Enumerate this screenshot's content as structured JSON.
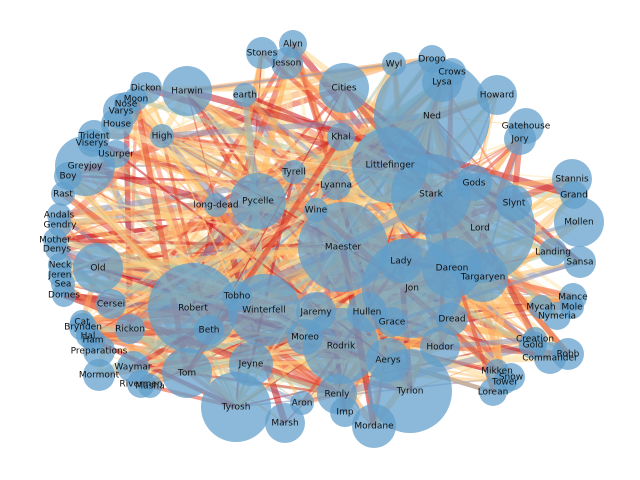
{
  "nodes": [
    "Ned",
    "Stark",
    "Lord",
    "Maester",
    "Littlefinger",
    "Robert",
    "Winterfell",
    "Rodrik",
    "Tyrion",
    "Jon",
    "Dareon",
    "Targaryen",
    "Lady",
    "Cities",
    "Harwin",
    "Pycelle",
    "Old",
    "Tom",
    "Tyrosh",
    "Aerys",
    "Renly",
    "Hodor",
    "Jeyne",
    "Jaremy",
    "Hullen",
    "Grace",
    "Moreo",
    "Beth",
    "Tobho",
    "Gods",
    "Slynt",
    "Tyrell",
    "Lyanna",
    "Wine",
    "Khal",
    "High",
    "earth",
    "long-dead",
    "Cersei",
    "Rickon",
    "Dread",
    "Imp",
    "Aron",
    "Lysa",
    "Greyjoy",
    "Stannis",
    "Grand",
    "Mollen",
    "Landing",
    "Sansa",
    "Mance",
    "Robb",
    "Gold",
    "Creation",
    "Commander",
    "Snow",
    "Tower",
    "Lorean",
    "Mikken",
    "Nymeria",
    "Mycah",
    "Mole",
    "Varys",
    "Dickon",
    "Moon",
    "Nose",
    "House",
    "Trident",
    "Viserys",
    "Usurper",
    "Boy",
    "Rast",
    "Andals",
    "Gendry",
    "Mother",
    "Denys",
    "Neck",
    "Jeren",
    "Sea",
    "Dornes",
    "Cat",
    "Hal",
    "Ham",
    "Brynden",
    "Preparations",
    "Mormont",
    "Waymar",
    "Rivermen",
    "Masha",
    "Marsh",
    "Mordane",
    "Jesson",
    "Stones",
    "Alyn",
    "Wyl",
    "Drogo",
    "Crows",
    "Howard",
    "Jory",
    "Gatehouse"
  ]
}
